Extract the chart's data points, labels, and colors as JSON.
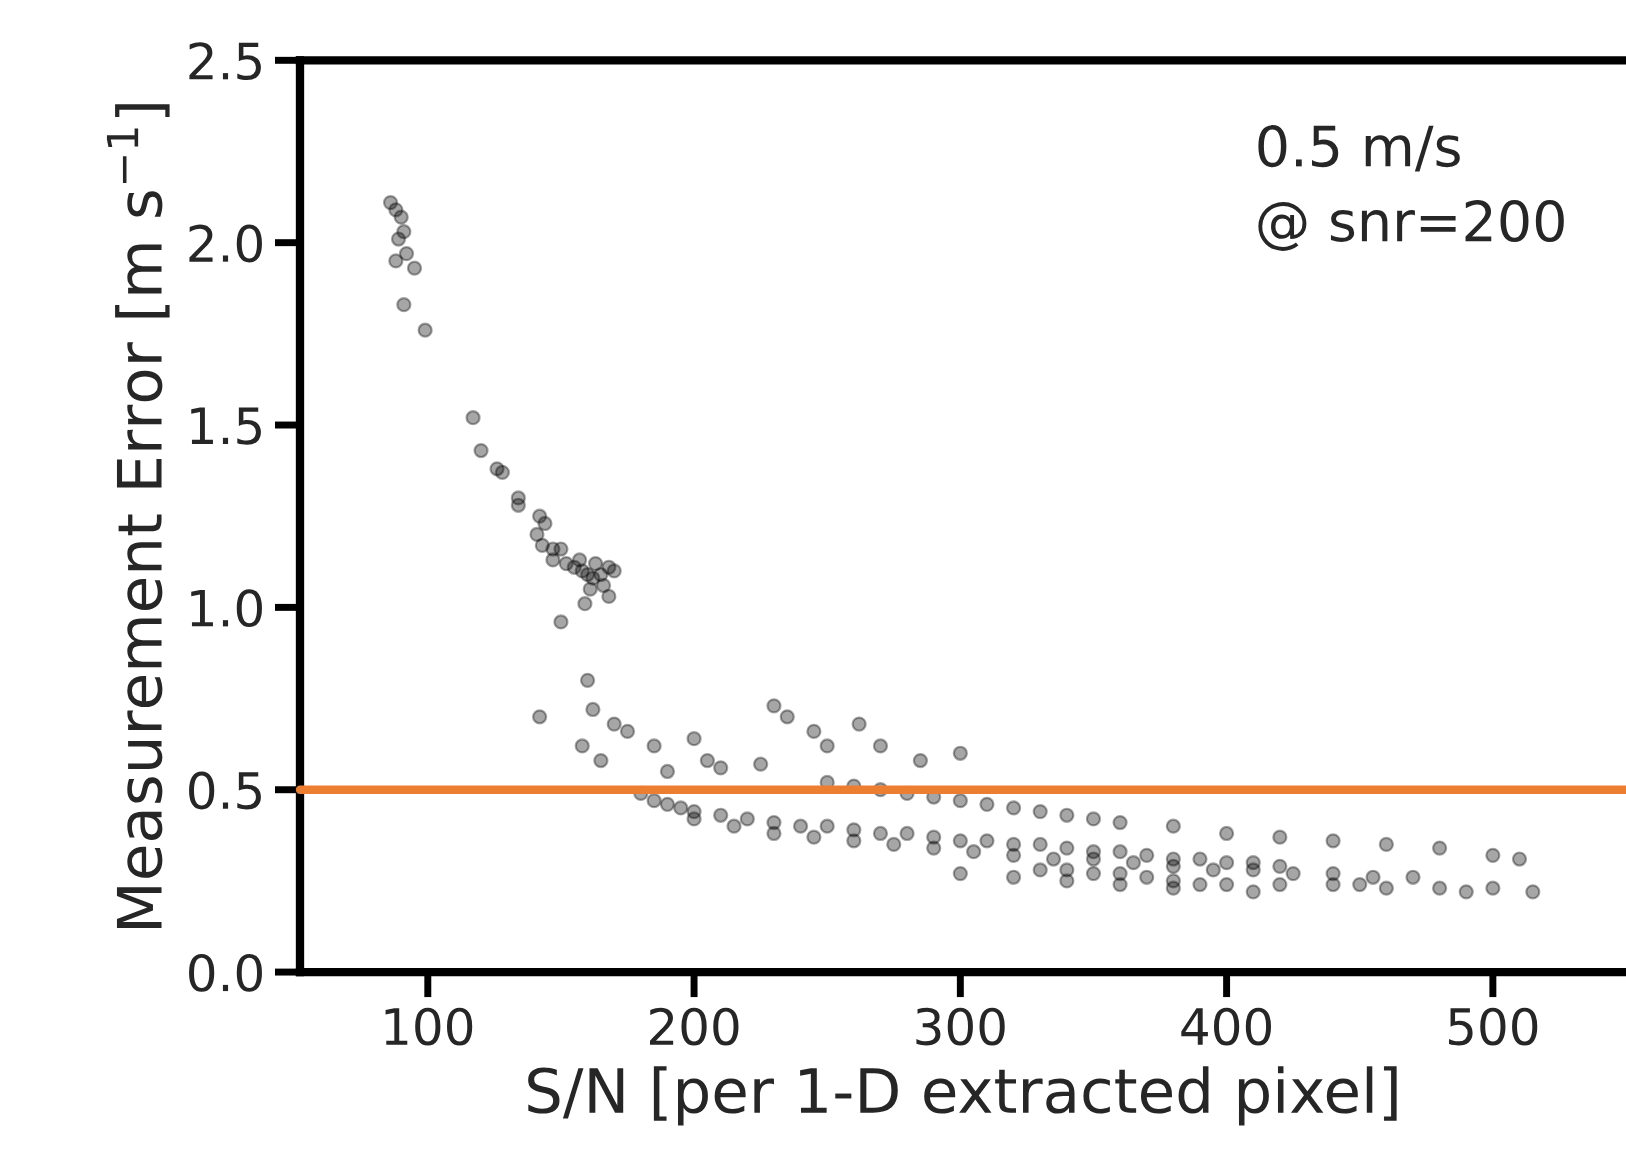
{
  "chart_data": {
    "type": "scatter",
    "xlabel": "S/N [per 1-D extracted pixel]",
    "ylabel": "Measurement Error [m s$^{−1}$]",
    "annotations": [
      "0.5 m/s\n@ snr=200"
    ],
    "xlim": [
      52,
      550
    ],
    "ylim": [
      0,
      2.5
    ],
    "xticks": [
      100,
      200,
      300,
      400,
      500
    ],
    "yticks": [
      {
        "value": 0,
        "label": "0.0"
      },
      {
        "value": 0.5,
        "label": "0.5"
      },
      {
        "value": 1,
        "label": "1.0"
      },
      {
        "value": 1.5,
        "label": "1.5"
      },
      {
        "value": 2,
        "label": "2.0"
      },
      {
        "value": 2.5,
        "label": "2.5"
      }
    ],
    "grid": false,
    "legend": false,
    "marker": "circle",
    "ref_lines": [
      {
        "axis": "y",
        "value": 0.5,
        "color": "#ed7d31",
        "line_style": "solid"
      }
    ],
    "series": [
      {
        "color": "#000000",
        "x": [
          86,
          88,
          90,
          91,
          89,
          92,
          88,
          95,
          91,
          99,
          117,
          120,
          126,
          128,
          134,
          134,
          142,
          144,
          141,
          143,
          147,
          150,
          147,
          152,
          155,
          158,
          160,
          162,
          165,
          168,
          170,
          163,
          157,
          166,
          161,
          159,
          168,
          150,
          142,
          160,
          162,
          170,
          175,
          158,
          165,
          185,
          190,
          200,
          205,
          210,
          225,
          230,
          235,
          245,
          250,
          262,
          270,
          285,
          300,
          180,
          185,
          190,
          195,
          200,
          210,
          220,
          230,
          240,
          250,
          260,
          270,
          280,
          290,
          300,
          310,
          320,
          330,
          340,
          350,
          360,
          370,
          380,
          390,
          400,
          410,
          420,
          250,
          260,
          270,
          280,
          290,
          300,
          310,
          320,
          330,
          340,
          350,
          360,
          380,
          400,
          420,
          440,
          460,
          480,
          500,
          510,
          330,
          340,
          350,
          360,
          370,
          380,
          390,
          400,
          420,
          440,
          460,
          480,
          500,
          515,
          200,
          215,
          230,
          245,
          260,
          275,
          290,
          305,
          320,
          335,
          350,
          365,
          380,
          395,
          410,
          425,
          440,
          455,
          470,
          300,
          320,
          340,
          360,
          380,
          410,
          450,
          490
        ],
        "values": [
          2.11,
          2.09,
          2.07,
          2.03,
          2.01,
          1.97,
          1.95,
          1.93,
          1.83,
          1.76,
          1.52,
          1.43,
          1.38,
          1.37,
          1.3,
          1.28,
          1.25,
          1.23,
          1.2,
          1.17,
          1.16,
          1.16,
          1.13,
          1.12,
          1.11,
          1.1,
          1.09,
          1.08,
          1.09,
          1.11,
          1.1,
          1.12,
          1.13,
          1.06,
          1.05,
          1.01,
          1.03,
          0.96,
          0.7,
          0.8,
          0.72,
          0.68,
          0.66,
          0.62,
          0.58,
          0.62,
          0.55,
          0.64,
          0.58,
          0.56,
          0.57,
          0.73,
          0.7,
          0.66,
          0.62,
          0.68,
          0.62,
          0.58,
          0.6,
          0.49,
          0.47,
          0.46,
          0.45,
          0.44,
          0.43,
          0.42,
          0.41,
          0.4,
          0.4,
          0.39,
          0.38,
          0.38,
          0.37,
          0.36,
          0.36,
          0.35,
          0.35,
          0.34,
          0.33,
          0.33,
          0.32,
          0.31,
          0.31,
          0.3,
          0.3,
          0.29,
          0.52,
          0.51,
          0.5,
          0.49,
          0.48,
          0.47,
          0.46,
          0.45,
          0.44,
          0.43,
          0.42,
          0.41,
          0.4,
          0.38,
          0.37,
          0.36,
          0.35,
          0.34,
          0.32,
          0.31,
          0.28,
          0.28,
          0.27,
          0.27,
          0.26,
          0.25,
          0.24,
          0.24,
          0.24,
          0.24,
          0.23,
          0.23,
          0.23,
          0.22,
          0.42,
          0.4,
          0.38,
          0.37,
          0.36,
          0.35,
          0.34,
          0.33,
          0.32,
          0.31,
          0.31,
          0.3,
          0.29,
          0.28,
          0.28,
          0.27,
          0.27,
          0.26,
          0.26,
          0.27,
          0.26,
          0.25,
          0.24,
          0.23,
          0.22,
          0.24,
          0.22
        ]
      }
    ]
  }
}
